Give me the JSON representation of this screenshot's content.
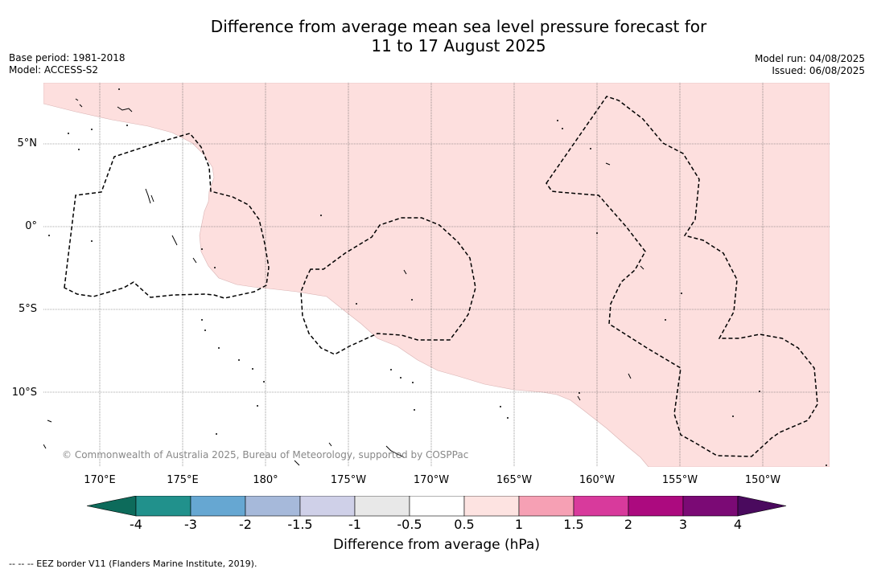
{
  "title": {
    "line1": "Difference from average mean sea level pressure forecast for",
    "line2": "11 to 17 August 2025"
  },
  "meta": {
    "base_period": "Base period: 1981-2018",
    "model": "Model: ACCESS-S2",
    "model_run": "Model run: 04/08/2025",
    "issued": "Issued: 06/08/2025"
  },
  "map": {
    "latitude_labels": [
      "5°N",
      "0°",
      "5°S",
      "10°S"
    ],
    "longitude_labels": [
      "170°E",
      "175°E",
      "180°",
      "175°W",
      "170°W",
      "165°W",
      "160°W",
      "155°W",
      "150°W"
    ],
    "copyright": "© Commonwealth of Australia 2025, Bureau of Meteorology, supported by COSPPac",
    "shaded_category": "0.5 to 1",
    "shaded_color": "#fddfde"
  },
  "colorbar": {
    "title": "Difference from average (hPa)",
    "tick_labels": [
      "-4",
      "-3",
      "-2",
      "-1.5",
      "-1",
      "-0.5",
      "0.5",
      "1",
      "1.5",
      "2",
      "3",
      "4"
    ],
    "low_extend_color": "#0d6b5b",
    "high_extend_color": "#4a0a5e",
    "colors": [
      "#21918c",
      "#66a7d2",
      "#a6b9da",
      "#cfd0e8",
      "#e8e8e8",
      "#ffffff",
      "#fde3e1",
      "#f6a0b4",
      "#d83a9c",
      "#ac0a7f",
      "#7b0a75"
    ]
  },
  "footer": {
    "legend": "--  --  -- EEZ border V11 (Flanders Marine Institute, 2019)."
  }
}
